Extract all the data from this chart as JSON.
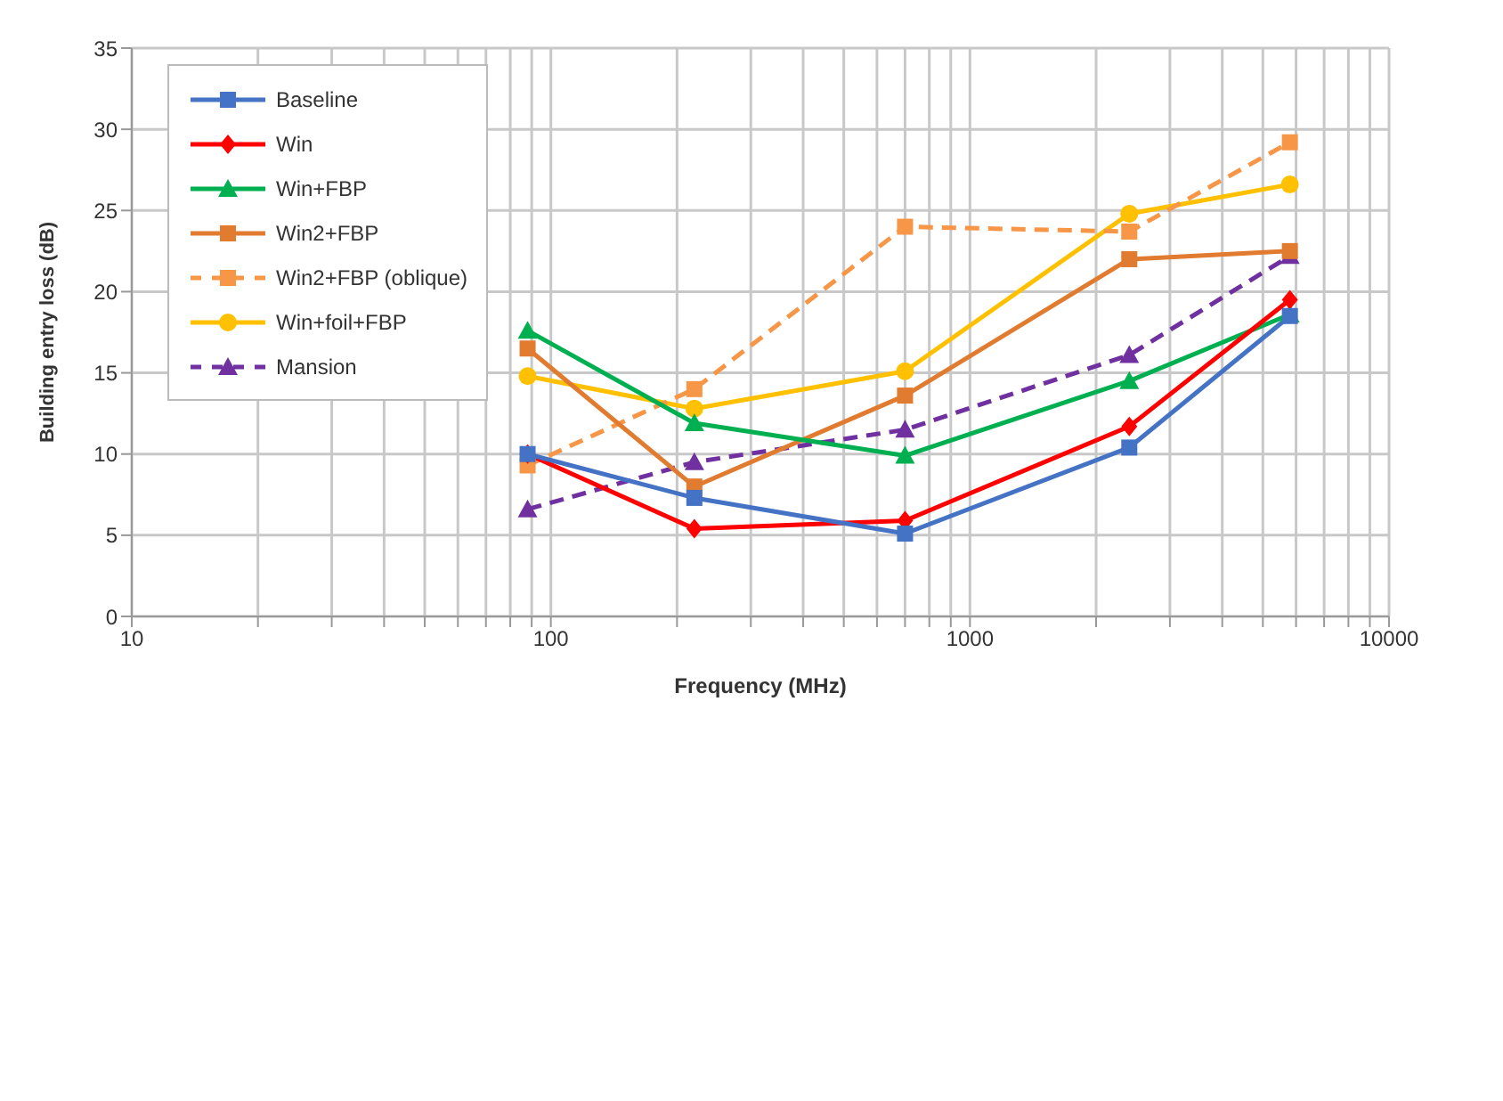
{
  "chart_data": {
    "type": "line",
    "xlabel": "Frequency (MHz)",
    "ylabel": "Building entry loss (dB)",
    "log": "x",
    "x": [
      88,
      220,
      700,
      2400,
      5800
    ],
    "xlim": [
      10,
      10000
    ],
    "xticks": [
      10,
      {
        "value": 20,
        "label": null
      },
      {
        "value": 30,
        "label": null
      },
      {
        "value": 40,
        "label": null
      },
      {
        "value": 50,
        "label": null
      },
      {
        "value": 60,
        "label": null
      },
      {
        "value": 70,
        "label": null
      },
      {
        "value": 80,
        "label": null
      },
      {
        "value": 90,
        "label": null
      },
      100,
      {
        "value": 200,
        "label": null
      },
      {
        "value": 300,
        "label": null
      },
      {
        "value": 400,
        "label": null
      },
      {
        "value": 500,
        "label": null
      },
      {
        "value": 600,
        "label": null
      },
      {
        "value": 700,
        "label": null
      },
      {
        "value": 800,
        "label": null
      },
      {
        "value": 900,
        "label": null
      },
      1000,
      {
        "value": 2000,
        "label": null
      },
      {
        "value": 3000,
        "label": null
      },
      {
        "value": 4000,
        "label": null
      },
      {
        "value": 5000,
        "label": null
      },
      {
        "value": 6000,
        "label": null
      },
      {
        "value": 7000,
        "label": null
      },
      {
        "value": 8000,
        "label": null
      },
      {
        "value": 9000,
        "label": null
      },
      10000
    ],
    "ylim": [
      0,
      35
    ],
    "yticks": [
      0,
      5,
      10,
      15,
      20,
      25,
      30,
      35
    ],
    "grid": true,
    "legend": "top left",
    "series": [
      {
        "name": "Baseline",
        "color": "#4472c4",
        "marker": "square",
        "line_style": "solid",
        "values": [
          10,
          7.3,
          5.1,
          10.4,
          18.5
        ]
      },
      {
        "name": "Win",
        "color": "#ff0000",
        "marker": "diamond",
        "line_style": "solid",
        "values": [
          10,
          5.4,
          5.9,
          11.7,
          19.5
        ]
      },
      {
        "name": "Win+FBP",
        "color": "#00b050",
        "marker": "triangle",
        "line_style": "solid",
        "values": [
          17.6,
          11.9,
          9.9,
          14.5,
          18.6
        ]
      },
      {
        "name": "Win2+FBP",
        "color": "#e07b30",
        "marker": "square",
        "line_style": "solid",
        "values": [
          16.5,
          8,
          13.6,
          22,
          22.5
        ]
      },
      {
        "name": "Win2+FBP (oblique)",
        "color": "#f79646",
        "marker": "square",
        "line_style": "dashed",
        "values": [
          9.3,
          14,
          24,
          23.7,
          29.2
        ]
      },
      {
        "name": "Win+foil+FBP",
        "color": "#ffc000",
        "marker": "circle",
        "line_style": "solid",
        "values": [
          14.8,
          12.8,
          15.1,
          24.8,
          26.6
        ]
      },
      {
        "name": "Mansion",
        "color": "#7030a0",
        "marker": "triangle",
        "line_style": "dashed",
        "values": [
          6.6,
          9.5,
          11.5,
          16.1,
          22.2
        ]
      }
    ]
  }
}
